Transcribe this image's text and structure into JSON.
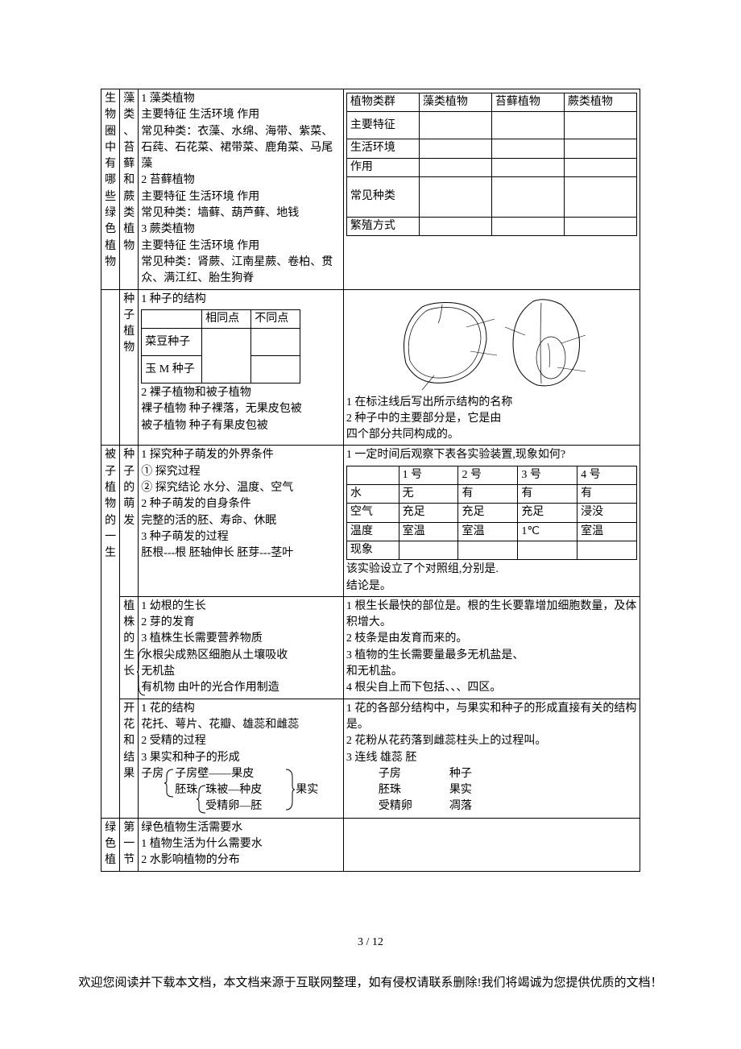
{
  "colors": {
    "text": "#000000",
    "bg": "#ffffff",
    "border": "#000000"
  },
  "font": {
    "family": "SimSun",
    "size_pt": 10.5
  },
  "row1": {
    "c1": "生物圈中有哪些绿色植物",
    "c2": "藻类、苔藓和蕨类植物",
    "c3": "1 藻类植物\n主要特征 生活环境 作用\n常见种类：衣藻、水绵、海带、紫菜、石莼、石花菜、裙带菜、鹿角菜、马尾藻\n2 苔藓植物\n主要特征 生活环境 作用\n常见种类：墙藓、葫芦藓、地钱\n3 蕨类植物\n主要特征 生活环境 作用\n常见种类：肾蕨、江南星蕨、卷柏、贯众、满江红、胎生狗脊",
    "table1": {
      "headers": [
        "植物类群",
        "藻类植物",
        "苔藓植物",
        "蕨类植物"
      ],
      "rows": [
        "主要特征",
        "生活环境",
        "作用",
        "常见种类",
        "繁殖方式"
      ]
    }
  },
  "row2": {
    "c2": "种子植物",
    "seedtable": {
      "h1": "",
      "h2": "相同点",
      "h3": "不同点",
      "r1": "菜豆种子",
      "r2": "玉 M 种子"
    },
    "before": "1 种子的结构",
    "after": "2 裸子植物和被子植物\n裸子植物 种子裸落，无果皮包被\n被子植物 种子有果皮包被",
    "c4": "1 在标注线后写出所示结构的名称\n2 种子中的主要部分是，它是由\n四个部分共同构成的。"
  },
  "row3": {
    "c1": "被子植物的一生",
    "c2": "种子的萌发",
    "c3": "1 探究种子萌发的外界条件\n① 探究过程\n② 探究结论 水分、温度、空气\n2 种子萌发的自身条件\n完整的活的胚、寿命、休眠\n3 种子萌发的过程\n胚根---根 胚轴伸长 胚芽---茎叶",
    "c4top": "1 一定时间后观察下表各实验装置,现象如何?",
    "exptable": {
      "cols": [
        "",
        "1 号",
        "2 号",
        "3 号",
        "4 号"
      ],
      "water": [
        "水",
        "无",
        "有",
        "有",
        "有"
      ],
      "air": [
        "空气",
        "充足",
        "充足",
        "充足",
        "浸没"
      ],
      "temp": [
        "温度",
        "室温",
        "室温",
        "1℃",
        "室温"
      ],
      "phen": [
        "现象",
        "",
        "",
        "",
        ""
      ]
    },
    "c4bot": "该实验设立了个对照组,分别是.\n结论是。"
  },
  "row4": {
    "c2": "植株的生长",
    "c3": "1 幼根的生长\n2 芽的发育\n3 植株生长需要营养物质\n水根尖成熟区细胞从土壤吸收\n无机盐\n有机物 由叶的光合作用制造",
    "c4": "1 根生长最快的部位是。根的生长要靠增加细胞数量，及体积增大。\n2 枝条是由发育而来的。\n3 植物的生长需要量最多无机盐是、\n和无机盐。\n4 根尖自上而下包括、、、四区。"
  },
  "row5": {
    "c2": "开花和结果",
    "c3a": "1 花的结构\n花托、萼片、花瓣、雄蕊和雌蕊\n2 受精的过程\n3 果实和种子的形成",
    "c3b1": "子房",
    "c3b2": "子房壁——果皮",
    "c3b3": "胚珠",
    "c3b4": "珠被—种皮",
    "c3b5": "果实",
    "c3b6": "受精卵—胚",
    "c4top": "1 花的各部分结构中，与果实和种子的形成直接有关的结构是。\n2 花粉从花药落到雌蕊柱头上的过程叫。\n3 连线 雄蕊          胚",
    "pairs": [
      [
        "子房",
        "种子"
      ],
      [
        "胚珠",
        "果实"
      ],
      [
        "受精卵",
        "凋落"
      ]
    ]
  },
  "row6": {
    "c1": "绿色植",
    "c2": "第一节",
    "c3": "绿色植物生活需要水\n1 植物生活为什么需要水\n2 水影响植物的分布"
  },
  "pagenum": "3 / 12",
  "footer": "欢迎您阅读并下载本文档，本文档来源于互联网整理，如有侵权请联系删除!我们将竭诚为您提供优质的文档！"
}
